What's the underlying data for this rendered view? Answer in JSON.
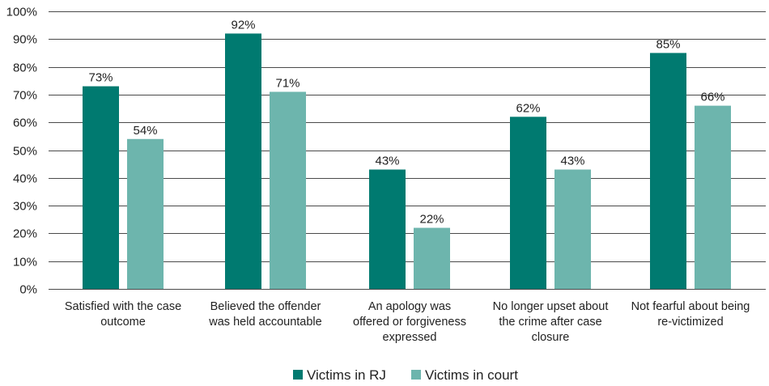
{
  "chart_data": {
    "type": "bar",
    "title": "",
    "xlabel": "",
    "ylabel": "",
    "ylim": [
      0,
      100
    ],
    "y_ticks": [
      0,
      10,
      20,
      30,
      40,
      50,
      60,
      70,
      80,
      90,
      100
    ],
    "y_tick_labels": [
      "0%",
      "10%",
      "20%",
      "30%",
      "40%",
      "50%",
      "60%",
      "70%",
      "80%",
      "90%",
      "100%"
    ],
    "grid": true,
    "legend_position": "bottom-center",
    "categories": [
      [
        "Satisfied with the case",
        "outcome"
      ],
      [
        "Believed the offender",
        "was held accountable"
      ],
      [
        "An apology was",
        "offered or forgiveness",
        "expressed"
      ],
      [
        "No longer upset about",
        "the crime after case",
        "closure"
      ],
      [
        "Not fearful about being",
        "re-victimized"
      ]
    ],
    "series": [
      {
        "name": "Victims in RJ",
        "color": "#007a70",
        "values": [
          73,
          92,
          43,
          62,
          85
        ],
        "labels": [
          "73%",
          "92%",
          "43%",
          "62%",
          "85%"
        ]
      },
      {
        "name": "Victims in court",
        "color": "#6db5ad",
        "values": [
          54,
          71,
          22,
          43,
          66
        ],
        "labels": [
          "54%",
          "71%",
          "22%",
          "43%",
          "66%"
        ]
      }
    ]
  }
}
